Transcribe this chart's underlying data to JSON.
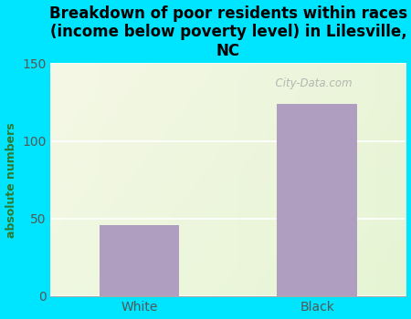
{
  "title": "Breakdown of poor residents within races\n(income below poverty level) in Lilesville,\nNC",
  "categories": [
    "White",
    "Black"
  ],
  "values": [
    46,
    124
  ],
  "bar_color": "#b09ec0",
  "ylabel": "absolute numbers",
  "ylim": [
    0,
    150
  ],
  "yticks": [
    0,
    50,
    100,
    150
  ],
  "background_color": "#00e5ff",
  "plot_bg_left": "#f5f8ee",
  "plot_bg_right": "#e8f5e0",
  "title_fontsize": 12,
  "axis_label_fontsize": 9,
  "tick_fontsize": 10,
  "watermark": "  City-Data.com"
}
